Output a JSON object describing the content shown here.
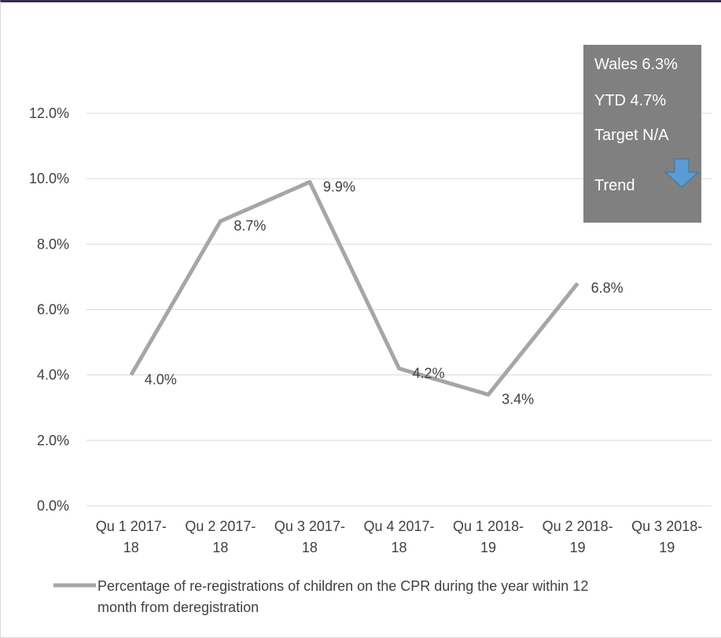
{
  "chart_data": {
    "type": "line",
    "categories": [
      [
        "Qu 1 2017-",
        "18"
      ],
      [
        "Qu 2 2017-",
        "18"
      ],
      [
        "Qu 3 2017-",
        "18"
      ],
      [
        "Qu 4 2017-",
        "18"
      ],
      [
        "Qu 1 2018-",
        "19"
      ],
      [
        "Qu 2 2018-",
        "19"
      ],
      [
        "Qu 3 2018-",
        "19"
      ]
    ],
    "series": [
      {
        "name": "Percentage of re-registrations of children on the CPR during the year within 12 month from deregistration",
        "legend_lines": [
          "Percentage of re-registrations of children on the CPR during the year within 12",
          "month from deregistration"
        ],
        "values": [
          4.0,
          8.7,
          9.9,
          4.2,
          3.4,
          6.8,
          null
        ],
        "labels": [
          "4.0%",
          "8.7%",
          "9.9%",
          "4.2%",
          "3.4%",
          "6.8%",
          ""
        ],
        "color": "#a6a6a6"
      }
    ],
    "yticks": [
      0,
      2,
      4,
      6,
      8,
      10,
      12
    ],
    "ytick_labels": [
      "0.0%",
      "2.0%",
      "4.0%",
      "6.0%",
      "8.0%",
      "10.0%",
      "12.0%"
    ],
    "ylim": [
      0,
      12
    ],
    "grid": true,
    "legend_position": "bottom"
  },
  "info_box": {
    "wales": "Wales 6.3%",
    "ytd": "YTD 4.7%",
    "target": "Target N/A",
    "trend": "Trend",
    "trend_icon": "arrow-down-icon",
    "background": "#808080",
    "arrow_color": "#5b9bd5"
  }
}
